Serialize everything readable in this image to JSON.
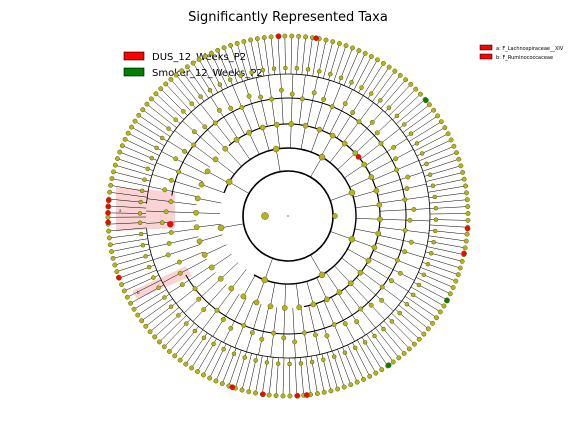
{
  "title": "Significantly Represented Taxa",
  "legend": [
    {
      "label": "DUS_12_Weeks_P2",
      "color": "#ff0000"
    },
    {
      "label": "Smoker_12_Weeks_P2",
      "color": "#008000"
    }
  ],
  "clade_legend": [
    {
      "label": "a: F_Lachnospiraceae__XIV",
      "color": "#ff0000"
    },
    {
      "label": "b: F_Ruminococcaceae",
      "color": "#ff0000"
    }
  ],
  "clade_markers": [
    {
      "label": "a"
    },
    {
      "label": "b"
    }
  ],
  "colors": {
    "default_node": "#b5b51a",
    "node_stroke": "#5a5a10",
    "highlight_shade": "#f7b7b7",
    "dus": "#ff0000",
    "smoker": "#008000"
  }
}
